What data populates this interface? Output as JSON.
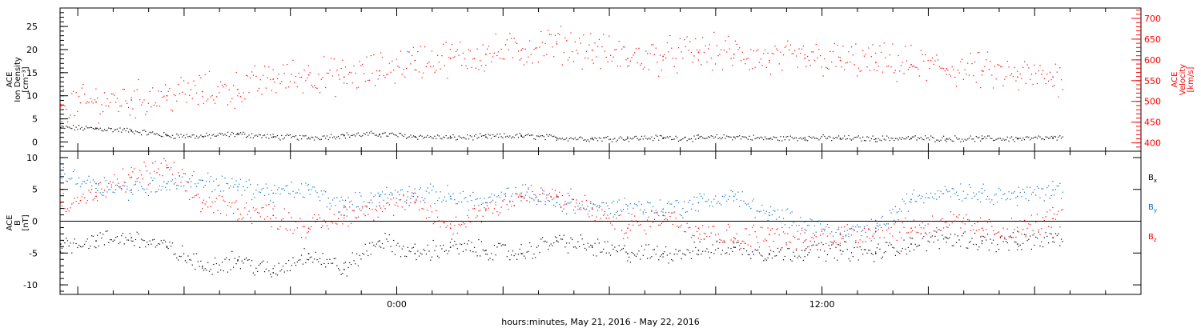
{
  "chart_data": [
    {
      "type": "scatter",
      "panel": "top",
      "x_range_hours": [
        -9.5,
        21
      ],
      "left_axis": {
        "label_lines": [
          "ACE",
          "Ion Density",
          "[cm⁻³]"
        ],
        "ylim": [
          -2,
          29
        ],
        "ticks": [
          0,
          5,
          10,
          15,
          20,
          25
        ]
      },
      "right_axis": {
        "label_lines": [
          "ACE",
          "Velocity",
          "[km/s]"
        ],
        "ylim": [
          380,
          725
        ],
        "ticks": [
          400,
          450,
          500,
          550,
          600,
          650,
          700
        ],
        "color": "#ff0000"
      },
      "series": [
        {
          "name": "",
          "axis": "left",
          "color": "#000000",
          "x": [
            -9.5,
            -8.5,
            -7.5,
            -6.5,
            -5.5,
            -4.5,
            -3.5,
            -2.5,
            -1.5,
            -0.5,
            0.5,
            1.5,
            2.5,
            3.5,
            4.5,
            5.5,
            6.5,
            7.5,
            8.5,
            9.5,
            10.5,
            11.5,
            12.5,
            13.5,
            14.5,
            15.5,
            16.5,
            17.5,
            18.5
          ],
          "y": [
            3.2,
            3.0,
            2.5,
            1.5,
            1.3,
            1.8,
            1.2,
            1.0,
            1.5,
            1.8,
            1.3,
            1.0,
            1.2,
            1.4,
            1.0,
            0.8,
            0.9,
            1.0,
            0.9,
            1.2,
            0.8,
            1.0,
            0.9,
            0.8,
            0.9,
            0.8,
            0.8,
            0.8,
            0.9
          ]
        },
        {
          "name": "",
          "axis": "right",
          "color": "#ff0000",
          "x": [
            -9.5,
            -8.5,
            -7.5,
            -6.5,
            -5.5,
            -4.5,
            -3.5,
            -2.5,
            -1.5,
            -0.5,
            0.5,
            1.5,
            2.5,
            3.5,
            4.5,
            5.5,
            6.5,
            7.5,
            8.5,
            9.5,
            10.5,
            11.5,
            12.5,
            13.5,
            14.5,
            15.5,
            16.5,
            17.5,
            18.5
          ],
          "y": [
            490,
            500,
            505,
            515,
            525,
            530,
            555,
            565,
            560,
            575,
            600,
            605,
            615,
            625,
            640,
            625,
            605,
            610,
            620,
            615,
            600,
            605,
            600,
            595,
            590,
            580,
            575,
            560,
            560
          ]
        }
      ]
    },
    {
      "type": "scatter",
      "panel": "bottom",
      "x_range_hours": [
        -9.5,
        21
      ],
      "left_axis": {
        "label_lines": [
          "ACE",
          "B",
          "[nT]"
        ],
        "ylim": [
          -11.5,
          11
        ],
        "ticks": [
          -10,
          -5,
          0,
          5,
          10
        ]
      },
      "xlabel": "hours:minutes, May 21, 2016 - May 22, 2016",
      "x_ticks": [
        {
          "hour": 0,
          "label": "0:00"
        },
        {
          "hour": 12,
          "label": "12:00"
        }
      ],
      "zero_line": true,
      "series": [
        {
          "name": "Bx",
          "color": "#000000",
          "x": [
            -9.5,
            -8.5,
            -7.5,
            -6.5,
            -5.5,
            -4.5,
            -3.5,
            -2.5,
            -1.5,
            -0.5,
            0.5,
            1.5,
            2.5,
            3.5,
            4.5,
            5.5,
            6.5,
            7.5,
            8.5,
            9.5,
            10.5,
            11.5,
            12.5,
            13.5,
            14.5,
            15.5,
            16.5,
            17.5,
            18.5
          ],
          "y": [
            -3.5,
            -3.0,
            -2.5,
            -4.0,
            -7.0,
            -6.0,
            -8.0,
            -5.0,
            -7.5,
            -3.0,
            -5.0,
            -4.0,
            -4.5,
            -5.0,
            -3.0,
            -4.0,
            -5.0,
            -5.0,
            -4.5,
            -4.0,
            -5.0,
            -4.5,
            -4.5,
            -5.0,
            -3.5,
            -2.5,
            -3.0,
            -3.5,
            -2.5
          ]
        },
        {
          "name": "By",
          "color": "#0070d0",
          "x": [
            -9.5,
            -8.5,
            -7.5,
            -6.5,
            -5.5,
            -4.5,
            -3.5,
            -2.5,
            -1.5,
            -0.5,
            0.5,
            1.5,
            2.5,
            3.5,
            4.5,
            5.5,
            6.5,
            7.5,
            8.5,
            9.5,
            10.5,
            11.5,
            12.5,
            13.5,
            14.5,
            15.5,
            16.5,
            17.5,
            18.5
          ],
          "y": [
            7.5,
            6.0,
            5.0,
            6.0,
            6.5,
            5.5,
            4.5,
            5.0,
            2.5,
            4.0,
            4.5,
            4.0,
            3.0,
            4.5,
            3.0,
            2.0,
            2.5,
            2.0,
            3.0,
            4.0,
            1.0,
            0.0,
            -2.0,
            -1.0,
            3.5,
            5.0,
            4.5,
            4.0,
            5.0
          ]
        },
        {
          "name": "Bz",
          "color": "#ff0000",
          "x": [
            -9.5,
            -8.5,
            -7.5,
            -6.5,
            -5.5,
            -4.5,
            -3.5,
            -2.5,
            -1.5,
            -0.5,
            0.5,
            1.5,
            2.5,
            3.5,
            4.5,
            5.5,
            6.5,
            7.5,
            8.5,
            9.5,
            10.5,
            11.5,
            12.5,
            13.5,
            14.5,
            15.5,
            16.5,
            17.5,
            18.5
          ],
          "y": [
            3.0,
            4.0,
            7.0,
            8.5,
            3.0,
            2.0,
            1.0,
            -1.0,
            1.0,
            2.5,
            3.0,
            -1.0,
            2.0,
            4.0,
            4.0,
            2.0,
            -1.0,
            1.0,
            -1.0,
            -2.5,
            -2.0,
            -3.0,
            -2.0,
            -1.5,
            -1.0,
            0.0,
            -1.0,
            -1.5,
            0.5
          ]
        }
      ]
    }
  ],
  "legend": [
    {
      "label": "B",
      "sub": "x",
      "color": "#000000"
    },
    {
      "label": "B",
      "sub": "y",
      "color": "#0070d0"
    },
    {
      "label": "B",
      "sub": "z",
      "color": "#ff0000"
    }
  ]
}
